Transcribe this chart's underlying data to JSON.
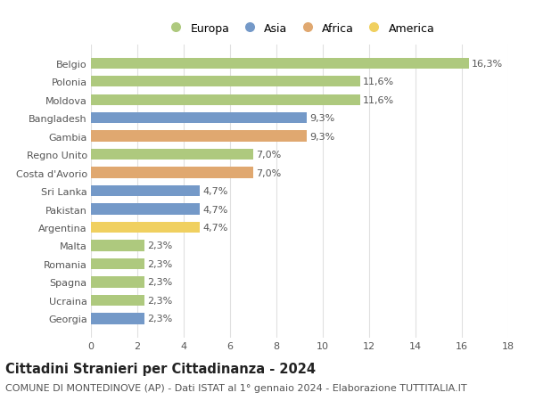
{
  "categories": [
    "Belgio",
    "Polonia",
    "Moldova",
    "Bangladesh",
    "Gambia",
    "Regno Unito",
    "Costa d'Avorio",
    "Sri Lanka",
    "Pakistan",
    "Argentina",
    "Malta",
    "Romania",
    "Spagna",
    "Ucraina",
    "Georgia"
  ],
  "values": [
    16.3,
    11.6,
    11.6,
    9.3,
    9.3,
    7.0,
    7.0,
    4.7,
    4.7,
    4.7,
    2.3,
    2.3,
    2.3,
    2.3,
    2.3
  ],
  "labels": [
    "16,3%",
    "11,6%",
    "11,6%",
    "9,3%",
    "9,3%",
    "7,0%",
    "7,0%",
    "4,7%",
    "4,7%",
    "4,7%",
    "2,3%",
    "2,3%",
    "2,3%",
    "2,3%",
    "2,3%"
  ],
  "colors": [
    "#aec97e",
    "#aec97e",
    "#aec97e",
    "#7499c8",
    "#e0a870",
    "#aec97e",
    "#e0a870",
    "#7499c8",
    "#7499c8",
    "#f0d060",
    "#aec97e",
    "#aec97e",
    "#aec97e",
    "#aec97e",
    "#7499c8"
  ],
  "legend_labels": [
    "Europa",
    "Asia",
    "Africa",
    "America"
  ],
  "legend_colors": [
    "#aec97e",
    "#7499c8",
    "#e0a870",
    "#f0d060"
  ],
  "xlim": [
    0,
    18
  ],
  "xticks": [
    0,
    2,
    4,
    6,
    8,
    10,
    12,
    14,
    16,
    18
  ],
  "title": "Cittadini Stranieri per Cittadinanza - 2024",
  "subtitle": "COMUNE DI MONTEDINOVE (AP) - Dati ISTAT al 1° gennaio 2024 - Elaborazione TUTTITALIA.IT",
  "background_color": "#ffffff",
  "grid_color": "#e0e0e0",
  "bar_height": 0.6,
  "label_fontsize": 8,
  "title_fontsize": 10.5,
  "subtitle_fontsize": 8,
  "tick_fontsize": 8,
  "legend_fontsize": 9
}
